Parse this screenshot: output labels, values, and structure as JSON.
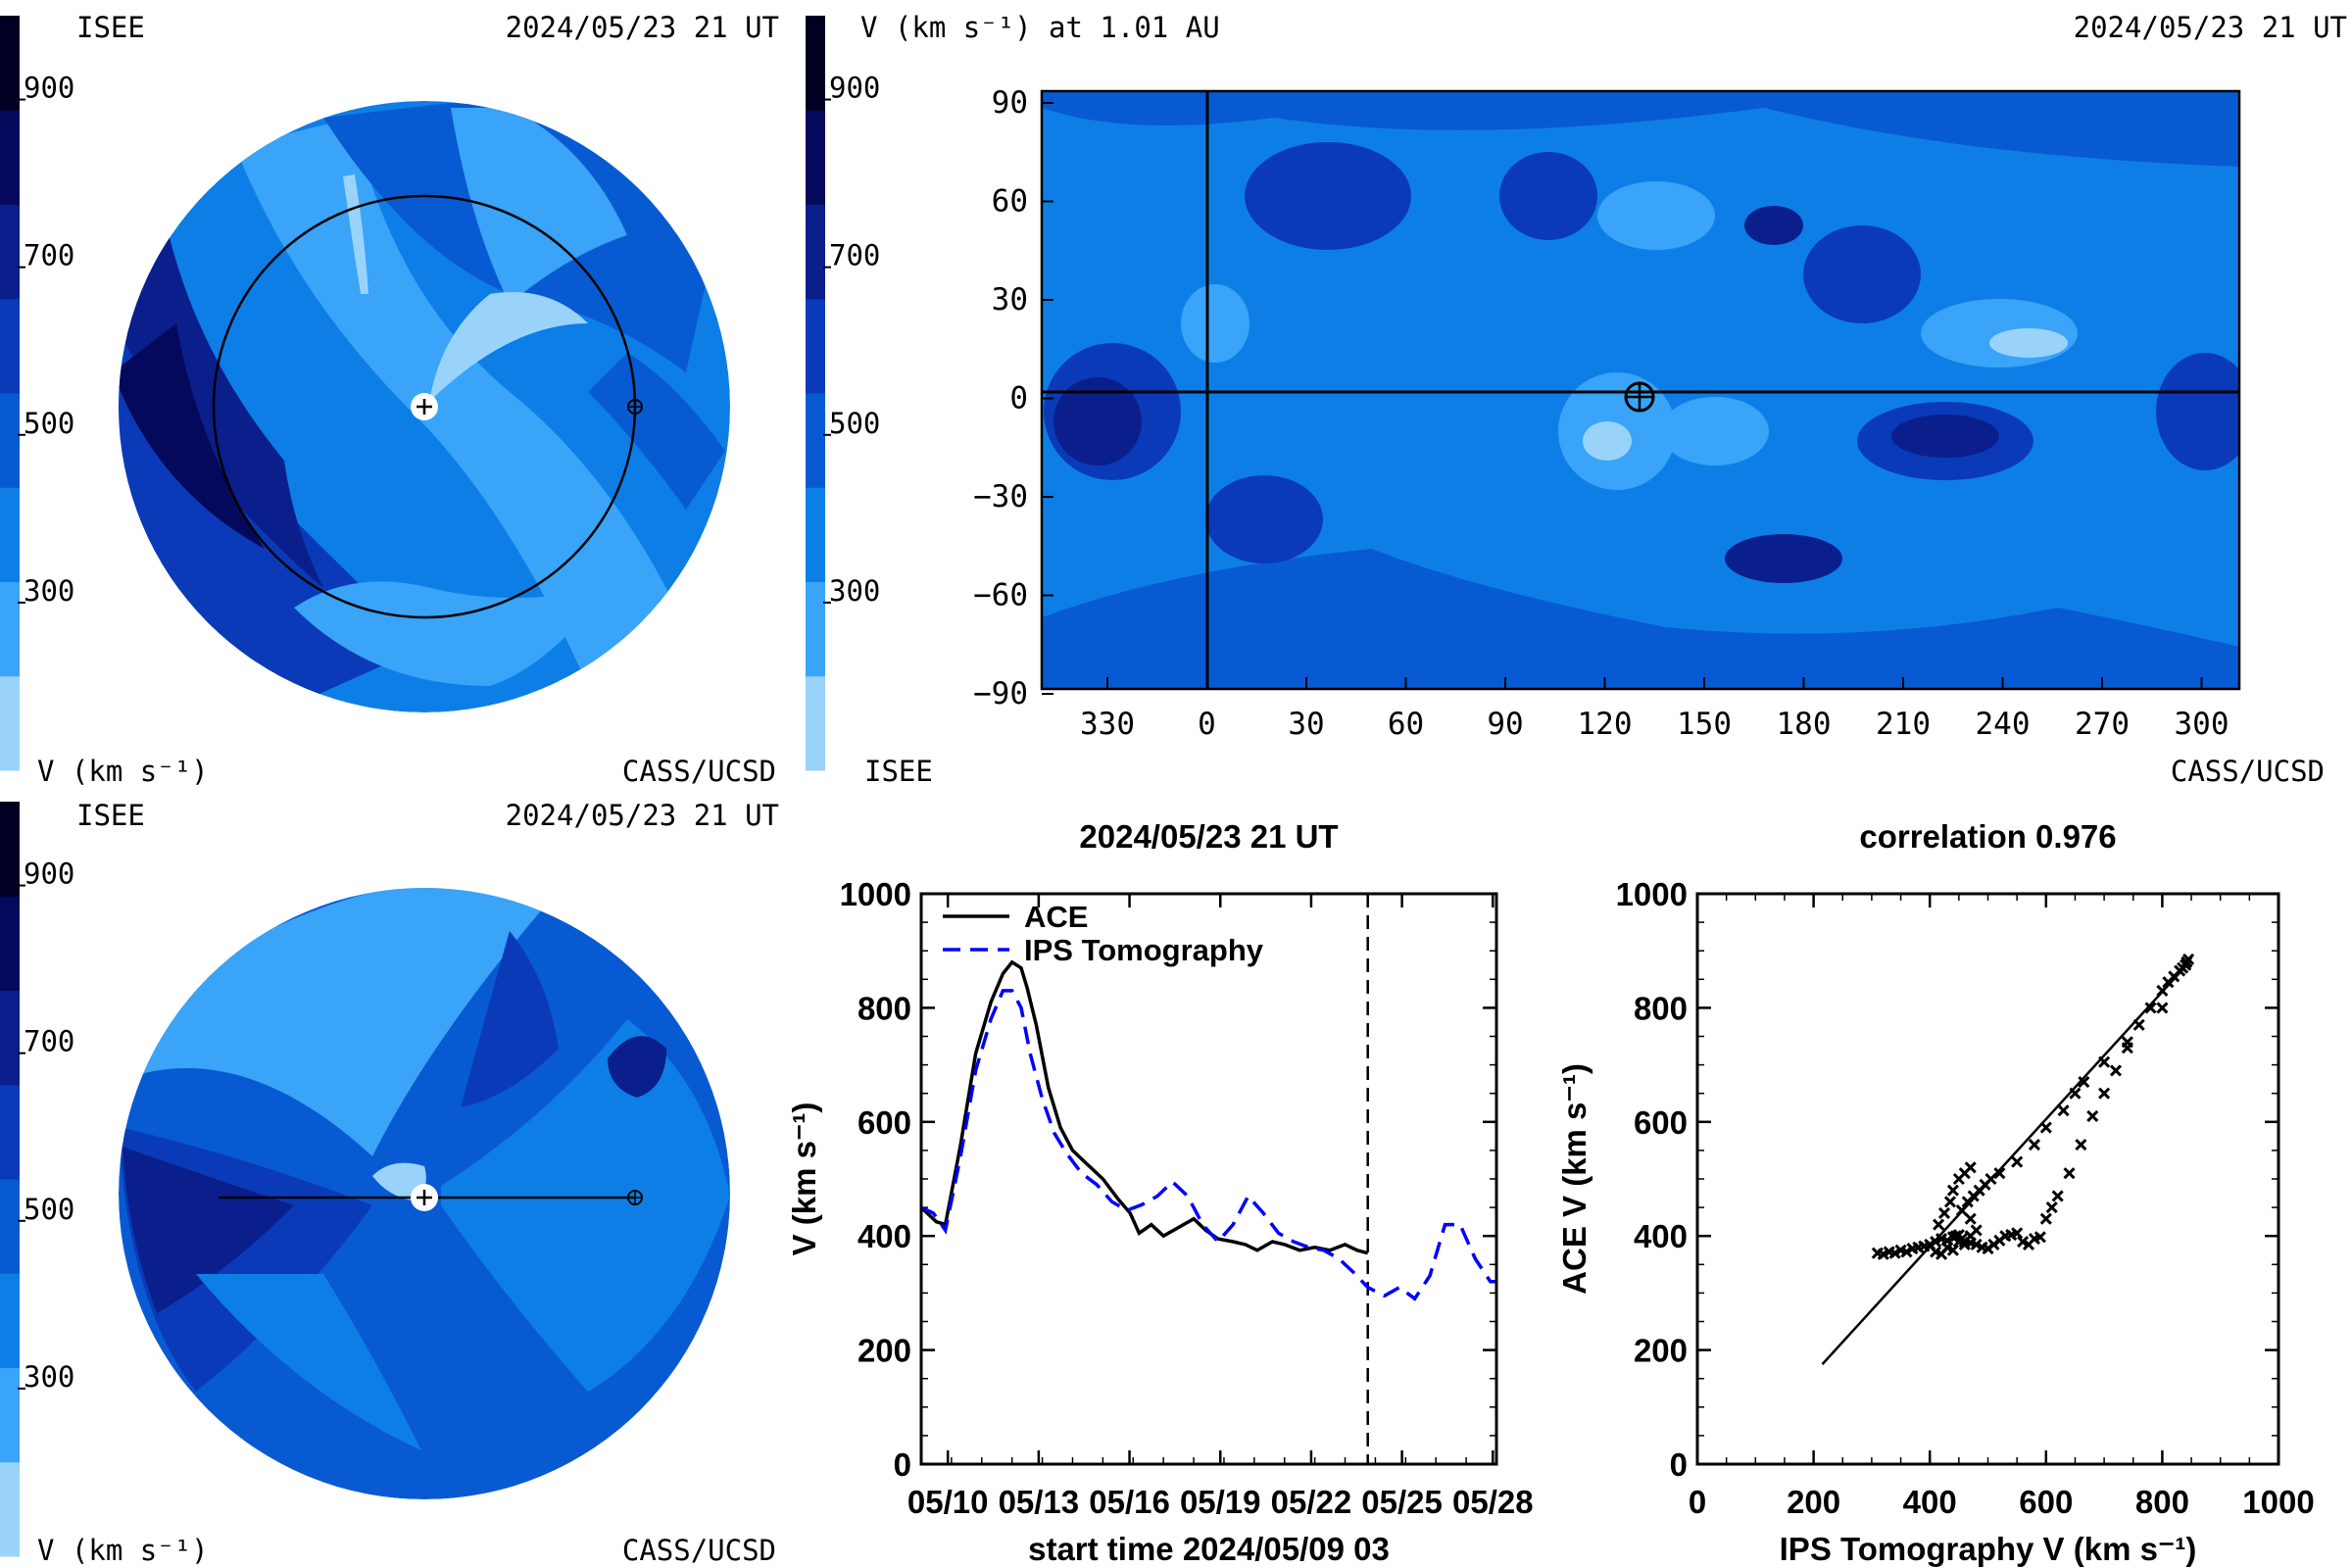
{
  "colors": {
    "scale": [
      "#99d3fa",
      "#39a4f8",
      "#0e7ee7",
      "#085ad2",
      "#0a3ab7",
      "#0a1f8c",
      "#04095c",
      "#010022"
    ],
    "black": "#000000",
    "tomography_line": "#0000ff"
  },
  "colorbar_ticks": [
    "900",
    "700",
    "500",
    "300"
  ],
  "top_left": {
    "label_tl": "ISEE",
    "label_tr": "2024/05/23 21 UT",
    "label_bl": "V (km s⁻¹)",
    "label_br": "CASS/UCSD"
  },
  "top_right": {
    "title": "V (km s⁻¹) at 1.01 AU",
    "label_tr": "2024/05/23 21 UT",
    "label_bl": "ISEE",
    "label_br": "CASS/UCSD",
    "y_ticks": [
      "90",
      "60",
      "30",
      "0",
      "−30",
      "−60",
      "−90"
    ],
    "x_ticks": [
      "330",
      "0",
      "30",
      "60",
      "90",
      "120",
      "150",
      "180",
      "210",
      "240",
      "270",
      "300"
    ]
  },
  "bottom_left": {
    "label_tl": "ISEE",
    "label_tr": "2024/05/23 21 UT",
    "label_bl": "V (km s⁻¹)",
    "label_br": "CASS/UCSD"
  },
  "chart_data": [
    {
      "type": "line",
      "title": "2024/05/23 21 UT",
      "xlabel": "start time 2024/05/09 03",
      "ylabel": "V (km s⁻¹)",
      "ylim": [
        0,
        1000
      ],
      "xlim": [
        0.0,
        19.0
      ],
      "x_tick_labels": [
        "05/10",
        "05/13",
        "05/16",
        "05/19",
        "05/22",
        "05/25",
        "05/28"
      ],
      "x_tick_days": [
        0.88,
        3.88,
        6.88,
        9.88,
        12.88,
        15.88,
        18.88
      ],
      "y_ticks": [
        0,
        200,
        400,
        600,
        800,
        1000
      ],
      "vertical_marker_day": 14.75,
      "legend": "top-left",
      "series": [
        {
          "name": "ACE",
          "style": "solid",
          "x": [
            0.0,
            0.5,
            0.8,
            1.3,
            1.8,
            2.3,
            2.7,
            3.0,
            3.3,
            3.5,
            3.8,
            4.2,
            4.6,
            5.0,
            5.5,
            6.0,
            6.5,
            6.9,
            7.2,
            7.6,
            8.0,
            8.5,
            9.0,
            9.4,
            9.8,
            10.3,
            10.7,
            11.1,
            11.6,
            12.0,
            12.5,
            13.0,
            13.5,
            14.0,
            14.4,
            14.75
          ],
          "y": [
            450,
            425,
            420,
            560,
            720,
            810,
            860,
            880,
            870,
            835,
            770,
            660,
            590,
            550,
            525,
            500,
            465,
            440,
            405,
            420,
            400,
            415,
            430,
            410,
            395,
            390,
            385,
            375,
            390,
            385,
            375,
            380,
            375,
            385,
            375,
            370
          ]
        },
        {
          "name": "IPS Tomography",
          "style": "dashed",
          "x": [
            0.0,
            0.4,
            0.8,
            1.3,
            1.8,
            2.3,
            2.7,
            3.0,
            3.3,
            3.6,
            4.0,
            4.4,
            4.8,
            5.3,
            5.8,
            6.3,
            6.8,
            7.3,
            7.8,
            8.3,
            8.8,
            9.3,
            9.8,
            10.3,
            10.8,
            11.3,
            11.8,
            12.3,
            12.8,
            13.3,
            13.8,
            14.3,
            14.75,
            15.3,
            15.8,
            16.3,
            16.8,
            17.3,
            17.8,
            18.3,
            18.8,
            19.0
          ],
          "y": [
            450,
            440,
            410,
            540,
            690,
            780,
            830,
            830,
            800,
            720,
            640,
            580,
            545,
            510,
            490,
            460,
            445,
            455,
            470,
            495,
            470,
            420,
            390,
            420,
            470,
            440,
            405,
            390,
            380,
            375,
            360,
            335,
            310,
            295,
            310,
            290,
            330,
            420,
            420,
            360,
            320,
            320
          ]
        }
      ]
    },
    {
      "type": "scatter",
      "title": "correlation 0.976",
      "xlabel": "IPS Tomography V (km s⁻¹)",
      "ylabel": "ACE V (km s⁻¹)",
      "xlim": [
        0,
        1000
      ],
      "ylim": [
        0,
        1000
      ],
      "x_ticks": [
        0,
        200,
        400,
        600,
        800,
        1000
      ],
      "y_ticks": [
        0,
        200,
        400,
        600,
        800,
        1000
      ],
      "fit_line": [
        [
          215,
          175
        ],
        [
          842,
          875
        ]
      ],
      "points": {
        "x": [
          310,
          320,
          330,
          340,
          350,
          360,
          370,
          380,
          390,
          400,
          410,
          420,
          430,
          440,
          445,
          450,
          455,
          460,
          470,
          480,
          490,
          500,
          510,
          520,
          530,
          540,
          550,
          560,
          570,
          580,
          590,
          600,
          610,
          620,
          640,
          660,
          680,
          700,
          720,
          740,
          760,
          780,
          800,
          810,
          820,
          830,
          835,
          840,
          842,
          845,
          415,
          425,
          435,
          440,
          450,
          460,
          470,
          410,
          420,
          430,
          440,
          450,
          460,
          470,
          480,
          470,
          455,
          465,
          475,
          485,
          495,
          505,
          520,
          550,
          580,
          600,
          630,
          650,
          665,
          700,
          740,
          800
        ],
        "y": [
          370,
          368,
          372,
          370,
          375,
          372,
          378,
          380,
          382,
          385,
          390,
          395,
          392,
          398,
          400,
          402,
          395,
          390,
          388,
          385,
          380,
          378,
          385,
          392,
          400,
          402,
          405,
          390,
          385,
          395,
          398,
          430,
          450,
          470,
          510,
          560,
          610,
          650,
          690,
          730,
          770,
          800,
          830,
          845,
          855,
          865,
          870,
          875,
          880,
          885,
          420,
          440,
          460,
          480,
          500,
          510,
          520,
          372,
          368,
          380,
          375,
          390,
          385,
          400,
          410,
          430,
          445,
          460,
          470,
          480,
          490,
          500,
          510,
          530,
          560,
          590,
          620,
          650,
          670,
          705,
          740,
          800
        ]
      }
    }
  ]
}
